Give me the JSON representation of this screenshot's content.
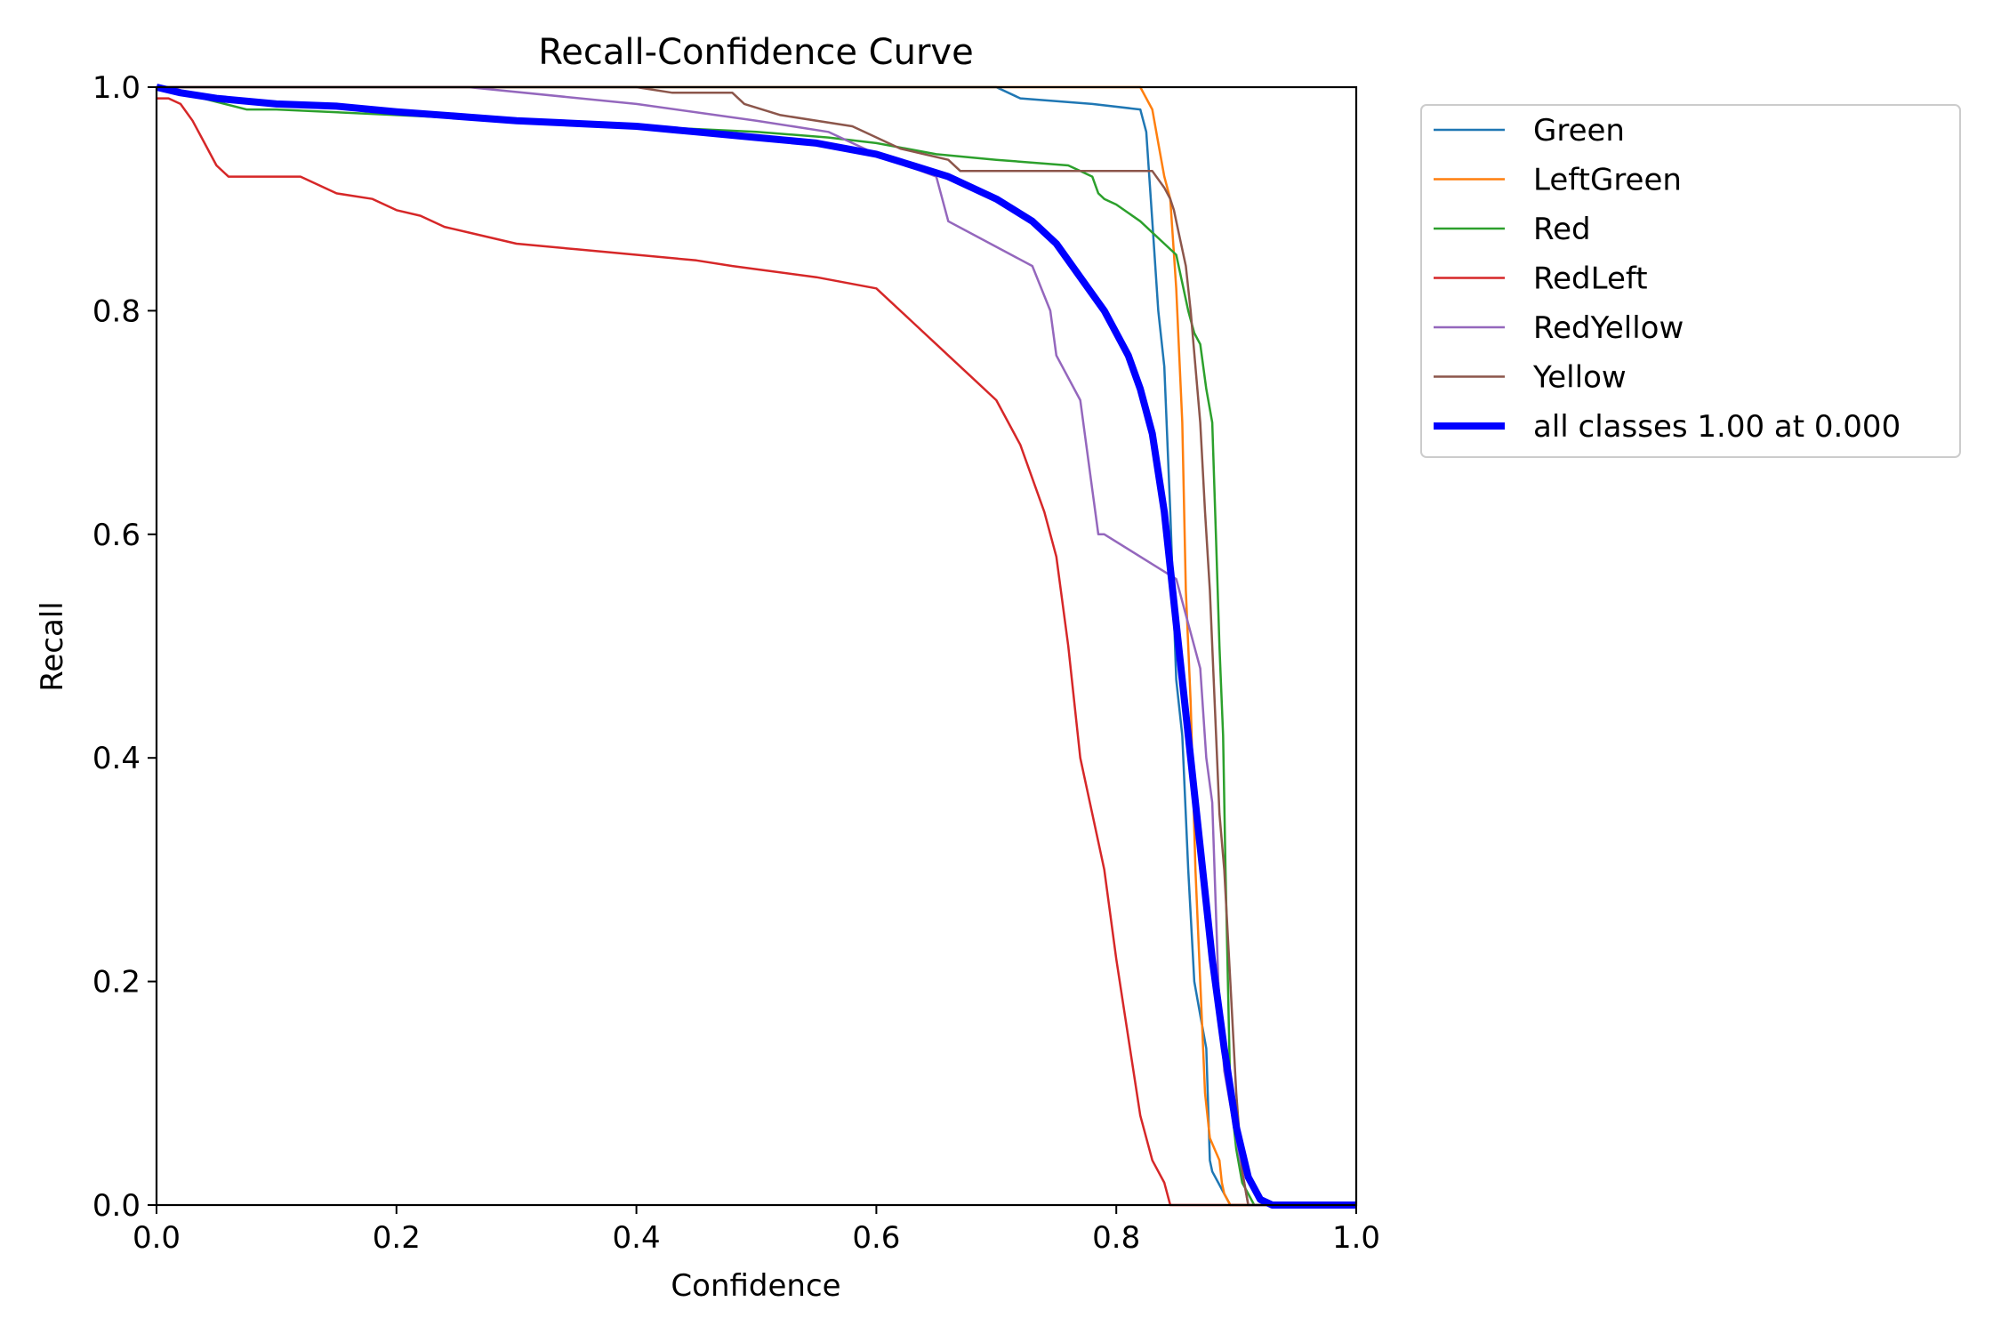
{
  "chart_data": {
    "type": "line",
    "title": "Recall-Confidence Curve",
    "xlabel": "Confidence",
    "ylabel": "Recall",
    "xlim": [
      0,
      1
    ],
    "ylim": [
      0,
      1
    ],
    "grid": false,
    "legend_position": "outside-top-right",
    "x_ticks": [
      "0.0",
      "0.2",
      "0.4",
      "0.6",
      "0.8",
      "1.0"
    ],
    "y_ticks": [
      "0.0",
      "0.2",
      "0.4",
      "0.6",
      "0.8",
      "1.0"
    ],
    "series": [
      {
        "name": "Green",
        "color": "#1f77b4",
        "x": [
          0.0,
          0.1,
          0.2,
          0.3,
          0.4,
          0.5,
          0.55,
          0.57,
          0.6,
          0.65,
          0.7,
          0.72,
          0.78,
          0.82,
          0.825,
          0.83,
          0.835,
          0.84,
          0.845,
          0.85,
          0.855,
          0.86,
          0.865,
          0.87,
          0.875,
          0.878,
          0.88,
          0.885,
          0.89,
          0.895,
          0.9,
          1.0
        ],
        "y": [
          1.0,
          1.0,
          1.0,
          1.0,
          1.0,
          1.0,
          1.0,
          1.0,
          1.0,
          1.0,
          1.0,
          0.99,
          0.985,
          0.98,
          0.96,
          0.88,
          0.8,
          0.75,
          0.62,
          0.47,
          0.42,
          0.3,
          0.2,
          0.17,
          0.14,
          0.04,
          0.03,
          0.02,
          0.01,
          0.0,
          0.0,
          0.0
        ]
      },
      {
        "name": "LeftGreen",
        "color": "#ff7f0e",
        "x": [
          0.0,
          0.2,
          0.4,
          0.6,
          0.8,
          0.82,
          0.83,
          0.835,
          0.84,
          0.845,
          0.85,
          0.855,
          0.858,
          0.862,
          0.866,
          0.87,
          0.874,
          0.878,
          0.882,
          0.886,
          0.888,
          0.89,
          0.895,
          1.0
        ],
        "y": [
          1.0,
          1.0,
          1.0,
          1.0,
          1.0,
          1.0,
          0.98,
          0.95,
          0.92,
          0.9,
          0.82,
          0.7,
          0.55,
          0.45,
          0.3,
          0.2,
          0.1,
          0.06,
          0.05,
          0.04,
          0.02,
          0.01,
          0.0,
          0.0
        ]
      },
      {
        "name": "Red",
        "color": "#2ca02c",
        "x": [
          0.0,
          0.02,
          0.075,
          0.1,
          0.2,
          0.3,
          0.4,
          0.5,
          0.56,
          0.6,
          0.65,
          0.7,
          0.76,
          0.77,
          0.78,
          0.785,
          0.79,
          0.8,
          0.82,
          0.83,
          0.84,
          0.85,
          0.86,
          0.865,
          0.87,
          0.875,
          0.88,
          0.883,
          0.886,
          0.889,
          0.891,
          0.893,
          0.895,
          0.9,
          0.905,
          0.91,
          0.915,
          1.0
        ],
        "y": [
          1.0,
          0.995,
          0.98,
          0.98,
          0.975,
          0.97,
          0.965,
          0.96,
          0.955,
          0.95,
          0.94,
          0.935,
          0.93,
          0.925,
          0.92,
          0.905,
          0.9,
          0.895,
          0.88,
          0.87,
          0.86,
          0.85,
          0.8,
          0.78,
          0.77,
          0.73,
          0.7,
          0.6,
          0.5,
          0.42,
          0.3,
          0.2,
          0.1,
          0.05,
          0.02,
          0.01,
          0.0,
          0.0
        ]
      },
      {
        "name": "RedLeft",
        "color": "#d62728",
        "x": [
          0.0,
          0.01,
          0.02,
          0.03,
          0.04,
          0.05,
          0.06,
          0.07,
          0.09,
          0.1,
          0.12,
          0.14,
          0.15,
          0.18,
          0.2,
          0.22,
          0.24,
          0.26,
          0.3,
          0.35,
          0.4,
          0.45,
          0.48,
          0.55,
          0.6,
          0.62,
          0.63,
          0.65,
          0.66,
          0.68,
          0.7,
          0.72,
          0.74,
          0.75,
          0.76,
          0.77,
          0.78,
          0.79,
          0.8,
          0.81,
          0.82,
          0.83,
          0.84,
          0.845,
          0.85,
          0.9,
          1.0
        ],
        "y": [
          0.99,
          0.99,
          0.985,
          0.97,
          0.95,
          0.93,
          0.92,
          0.92,
          0.92,
          0.92,
          0.92,
          0.91,
          0.905,
          0.9,
          0.89,
          0.885,
          0.875,
          0.87,
          0.86,
          0.855,
          0.85,
          0.845,
          0.84,
          0.83,
          0.82,
          0.8,
          0.79,
          0.77,
          0.76,
          0.74,
          0.72,
          0.68,
          0.62,
          0.58,
          0.5,
          0.4,
          0.35,
          0.3,
          0.22,
          0.15,
          0.08,
          0.04,
          0.02,
          0.0,
          0.0,
          0.0,
          0.0
        ]
      },
      {
        "name": "RedYellow",
        "color": "#9467bd",
        "x": [
          0.0,
          0.2,
          0.26,
          0.4,
          0.5,
          0.56,
          0.6,
          0.65,
          0.66,
          0.73,
          0.745,
          0.75,
          0.77,
          0.78,
          0.785,
          0.79,
          0.85,
          0.87,
          0.875,
          0.88,
          0.885,
          0.89,
          0.9,
          0.91,
          1.0
        ],
        "y": [
          1.0,
          1.0,
          1.0,
          0.985,
          0.97,
          0.96,
          0.94,
          0.92,
          0.88,
          0.84,
          0.8,
          0.76,
          0.72,
          0.64,
          0.6,
          0.6,
          0.56,
          0.48,
          0.4,
          0.36,
          0.2,
          0.12,
          0.06,
          0.0,
          0.0
        ]
      },
      {
        "name": "Yellow",
        "color": "#8c564b",
        "x": [
          0.0,
          0.38,
          0.4,
          0.43,
          0.48,
          0.49,
          0.52,
          0.58,
          0.59,
          0.62,
          0.66,
          0.67,
          0.7,
          0.83,
          0.84,
          0.845,
          0.848,
          0.852,
          0.858,
          0.862,
          0.866,
          0.87,
          0.874,
          0.878,
          0.882,
          0.886,
          0.89,
          0.895,
          0.9,
          0.905,
          0.91,
          1.0
        ],
        "y": [
          1.0,
          1.0,
          1.0,
          0.995,
          0.995,
          0.985,
          0.975,
          0.965,
          0.96,
          0.945,
          0.935,
          0.925,
          0.925,
          0.925,
          0.91,
          0.9,
          0.89,
          0.87,
          0.84,
          0.8,
          0.75,
          0.7,
          0.62,
          0.55,
          0.45,
          0.35,
          0.3,
          0.2,
          0.1,
          0.03,
          0.0,
          0.0
        ]
      },
      {
        "name": "all classes 1.00 at 0.000",
        "color": "#0000ff",
        "bold": true,
        "x": [
          0.0,
          0.02,
          0.05,
          0.1,
          0.15,
          0.2,
          0.3,
          0.4,
          0.45,
          0.5,
          0.55,
          0.6,
          0.63,
          0.66,
          0.7,
          0.73,
          0.75,
          0.77,
          0.79,
          0.8,
          0.81,
          0.82,
          0.83,
          0.84,
          0.85,
          0.86,
          0.87,
          0.88,
          0.89,
          0.9,
          0.91,
          0.92,
          0.93,
          0.95,
          1.0
        ],
        "y": [
          1.0,
          0.995,
          0.99,
          0.985,
          0.983,
          0.978,
          0.97,
          0.965,
          0.96,
          0.955,
          0.95,
          0.94,
          0.93,
          0.92,
          0.9,
          0.88,
          0.86,
          0.83,
          0.8,
          0.78,
          0.76,
          0.73,
          0.69,
          0.62,
          0.52,
          0.42,
          0.32,
          0.22,
          0.14,
          0.07,
          0.025,
          0.005,
          0.0,
          0.0,
          0.0
        ]
      }
    ]
  }
}
